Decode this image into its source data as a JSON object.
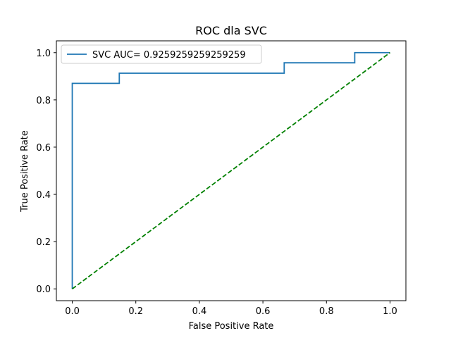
{
  "chart_data": {
    "type": "line",
    "title": "ROC dla SVC",
    "xlabel": "False Positive Rate",
    "ylabel": "True Positive Rate",
    "xlim": [
      -0.05,
      1.05
    ],
    "ylim": [
      -0.05,
      1.05
    ],
    "x_ticks": [
      0.0,
      0.2,
      0.4,
      0.6,
      0.8,
      1.0
    ],
    "y_ticks": [
      0.0,
      0.2,
      0.4,
      0.6,
      0.8,
      1.0
    ],
    "x_tick_labels": [
      "0.0",
      "0.2",
      "0.4",
      "0.6",
      "0.8",
      "1.0"
    ],
    "y_tick_labels": [
      "0.0",
      "0.2",
      "0.4",
      "0.6",
      "0.8",
      "1.0"
    ],
    "grid": false,
    "legend_position": "upper-left",
    "series": [
      {
        "name": "SVC AUC= 0.9259259259259259",
        "color": "#1f77b4",
        "style": "solid",
        "x": [
          0.0,
          0.0,
          0.148,
          0.148,
          0.667,
          0.667,
          0.889,
          0.889,
          1.0
        ],
        "y": [
          0.0,
          0.87,
          0.87,
          0.913,
          0.913,
          0.957,
          0.957,
          1.0,
          1.0
        ]
      },
      {
        "color": "#008000",
        "style": "dashed",
        "x": [
          0.0,
          1.0
        ],
        "y": [
          0.0,
          1.0
        ]
      }
    ]
  }
}
